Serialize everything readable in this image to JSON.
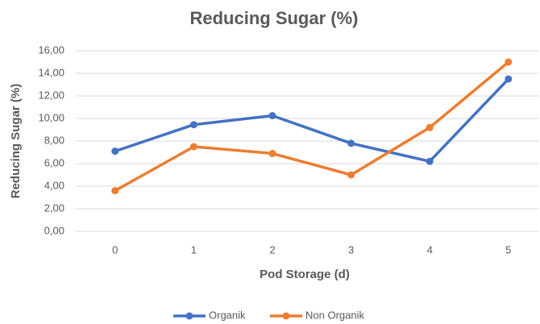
{
  "chart_data": {
    "type": "line",
    "title": "Reducing Sugar (%)",
    "x_label": "Pod Storage (d)",
    "y_label": "Reducing Sugar (%)",
    "categories": [
      "0",
      "1",
      "2",
      "3",
      "4",
      "5"
    ],
    "series": [
      {
        "name": "Organik",
        "color": "#4472c4",
        "values": [
          7.1,
          9.45,
          10.25,
          7.8,
          6.2,
          13.5
        ]
      },
      {
        "name": "Non Organik",
        "color": "#ed7d31",
        "values": [
          3.6,
          7.5,
          6.9,
          5.0,
          9.2,
          15.0
        ]
      }
    ],
    "ylim": [
      0,
      16
    ],
    "yticks": [
      {
        "value": 0,
        "label": "0,00"
      },
      {
        "value": 2,
        "label": "2,00"
      },
      {
        "value": 4,
        "label": "4,00"
      },
      {
        "value": 6,
        "label": "6,00"
      },
      {
        "value": 8,
        "label": "8,00"
      },
      {
        "value": 10,
        "label": "10,00"
      },
      {
        "value": 12,
        "label": "12,00"
      },
      {
        "value": 14,
        "label": "14,00"
      },
      {
        "value": 16,
        "label": "16,00"
      }
    ],
    "grid": true,
    "legend": "bottom"
  }
}
